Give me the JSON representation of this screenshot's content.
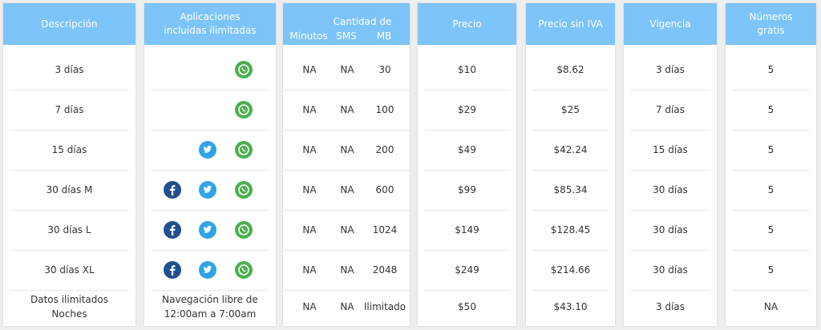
{
  "headers": {
    "descripcion": "Descripción",
    "aplicaciones": [
      "Aplicaciones",
      "incluidas ilimitadas"
    ],
    "cantidad": "Cantidad de",
    "minutos": "Minutos",
    "sms": "SMS",
    "mb": "MB",
    "precio": "Precio",
    "precio_sin_iva": "Precio sin IVA",
    "vigencia": "Vigencia",
    "numeros": [
      "Números",
      "gratis"
    ]
  },
  "rows": [
    {
      "descripcion": "3 días",
      "apps": [
        "whatsapp"
      ],
      "minutos": "NA",
      "sms": "NA",
      "mb": "30",
      "precio": "$10",
      "precio_sin_iva": "$8.62",
      "vigencia": "3 días",
      "numeros": "5"
    },
    {
      "descripcion": "7 días",
      "apps": [
        "whatsapp"
      ],
      "minutos": "NA",
      "sms": "NA",
      "mb": "100",
      "precio": "$29",
      "precio_sin_iva": "$25",
      "vigencia": "7 días",
      "numeros": "5"
    },
    {
      "descripcion": "15 días",
      "apps": [
        "twitter",
        "whatsapp"
      ],
      "minutos": "NA",
      "sms": "NA",
      "mb": "200",
      "precio": "$49",
      "precio_sin_iva": "$42.24",
      "vigencia": "15 días",
      "numeros": "5"
    },
    {
      "descripcion": "30 días M",
      "apps": [
        "facebook",
        "twitter",
        "whatsapp"
      ],
      "minutos": "NA",
      "sms": "NA",
      "mb": "600",
      "precio": "$99",
      "precio_sin_iva": "$85.34",
      "vigencia": "30 días",
      "numeros": "5"
    },
    {
      "descripcion": "30 días L",
      "apps": [
        "facebook",
        "twitter",
        "whatsapp"
      ],
      "minutos": "NA",
      "sms": "NA",
      "mb": "1024",
      "precio": "$149",
      "precio_sin_iva": "$128.45",
      "vigencia": "30 días",
      "numeros": "5"
    },
    {
      "descripcion": "30 días XL",
      "apps": [
        "facebook",
        "twitter",
        "whatsapp"
      ],
      "minutos": "NA",
      "sms": "NA",
      "mb": "2048",
      "precio": "$249",
      "precio_sin_iva": "$214.66",
      "vigencia": "30 días",
      "numeros": "5"
    },
    {
      "descripcion_lines": [
        "Datos ilimitados",
        "Noches"
      ],
      "apps_text": [
        "Navegación libre de",
        "12:00am a 7:00am"
      ],
      "minutos": "NA",
      "sms": "NA",
      "mb": "Ilimitado",
      "precio": "$50",
      "precio_sin_iva": "$43.10",
      "vigencia": "3 días",
      "numeros": "NA"
    }
  ],
  "colors": {
    "header_bg": "#7cc4f9",
    "whatsapp": "#4caf50",
    "twitter": "#2fa3e6",
    "facebook": "#1f4f8f"
  }
}
